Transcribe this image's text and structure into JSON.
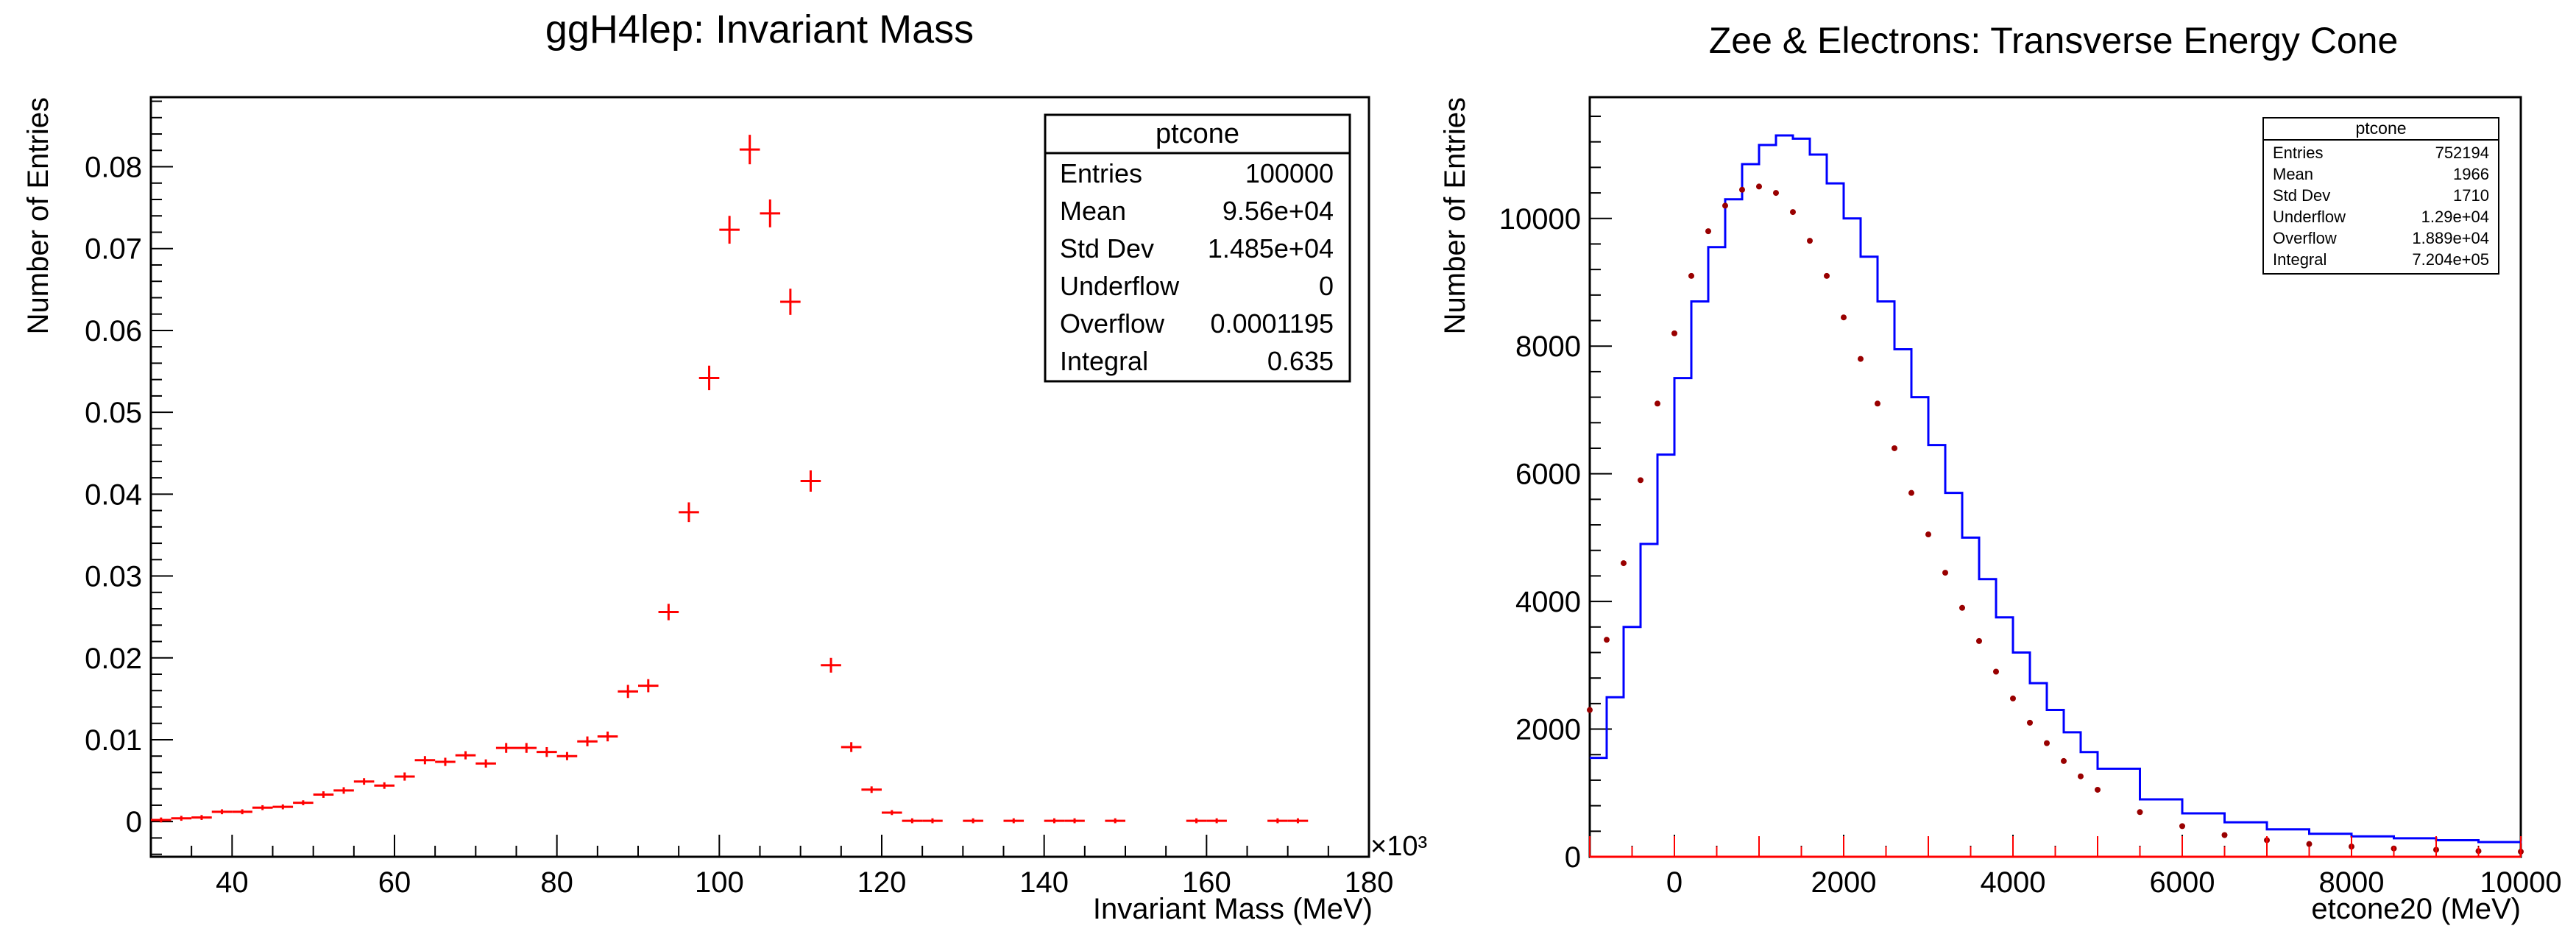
{
  "chart_data": [
    {
      "type": "scatter",
      "title": "ggH4lep: Invariant Mass",
      "xlabel": "Invariant Mass (MeV)",
      "ylabel": "Number of Entries",
      "x_exponent_label": "×10³",
      "xlim": [
        30000,
        180000
      ],
      "ylim": [
        -0.0043,
        0.0885
      ],
      "x_ticks": [
        40000,
        60000,
        80000,
        100000,
        120000,
        140000,
        160000,
        180000
      ],
      "x_tick_labels": [
        "40",
        "60",
        "80",
        "100",
        "120",
        "140",
        "160",
        "180"
      ],
      "y_ticks": [
        0,
        0.01,
        0.02,
        0.03,
        0.04,
        0.05,
        0.06,
        0.07,
        0.08
      ],
      "y_tick_labels": [
        "0",
        "0.01",
        "0.02",
        "0.03",
        "0.04",
        "0.05",
        "0.06",
        "0.07",
        "0.08"
      ],
      "grid": false,
      "series": [
        {
          "color": "#ff0000",
          "x_bin_width": 2500,
          "x": [
            31250,
            33750,
            36250,
            38750,
            41250,
            43750,
            46250,
            48750,
            51250,
            53750,
            56250,
            58750,
            61250,
            63750,
            66250,
            68750,
            71250,
            73750,
            76250,
            78750,
            81250,
            83750,
            86250,
            88750,
            91250,
            93750,
            96250,
            98750,
            101250,
            103750,
            106250,
            108750,
            111250,
            113750,
            116250,
            118750,
            121250,
            123750,
            126250,
            131250,
            136250,
            141250,
            143750,
            148750,
            158750,
            161250,
            168750,
            171250
          ],
          "values": [
            0.0002,
            0.0004,
            0.0005,
            0.0012,
            0.0012,
            0.0017,
            0.0018,
            0.0023,
            0.0033,
            0.0038,
            0.0049,
            0.0044,
            0.0055,
            0.0075,
            0.0073,
            0.0081,
            0.0071,
            0.009,
            0.009,
            0.0085,
            0.008,
            0.0098,
            0.0104,
            0.0159,
            0.0166,
            0.0256,
            0.0378,
            0.0542,
            0.0723,
            0.0821,
            0.0743,
            0.0635,
            0.0416,
            0.0191,
            0.0091,
            0.0039,
            0.0011,
            0.0001,
            0.0001,
            0.0001,
            0.0001,
            0.0001,
            0.0001,
            0.0001,
            0.0001,
            0.0001,
            0.0001,
            0.0001
          ],
          "errors": [
            0.0002,
            0.0002,
            0.0002,
            0.0003,
            0.0003,
            0.0003,
            0.0003,
            0.0003,
            0.0004,
            0.0004,
            0.0004,
            0.0004,
            0.0005,
            0.0005,
            0.0005,
            0.0005,
            0.0005,
            0.0006,
            0.0006,
            0.0006,
            0.0005,
            0.0006,
            0.0006,
            0.0008,
            0.0008,
            0.001,
            0.0012,
            0.0015,
            0.0017,
            0.0018,
            0.0017,
            0.0016,
            0.0013,
            0.0009,
            0.0006,
            0.0004,
            0.0002,
            0.0001,
            0.0001,
            0.0001,
            0.0001,
            0.0001,
            0.0001,
            0.0001,
            0.0001,
            0.0001,
            0.0001,
            0.0001
          ]
        }
      ],
      "stats_box": {
        "title": "ptcone",
        "rows": [
          {
            "label": "Entries",
            "value": "100000"
          },
          {
            "label": "Mean",
            "value": "9.56e+04"
          },
          {
            "label": "Std Dev",
            "value": "1.485e+04"
          },
          {
            "label": "Underflow",
            "value": "0"
          },
          {
            "label": "Overflow",
            "value": "0.0001195"
          },
          {
            "label": "Integral",
            "value": "0.635"
          }
        ]
      }
    },
    {
      "type": "line",
      "title": "Zee & Electrons: Transverse Energy Cone",
      "xlabel": "etcone20 (MeV)",
      "ylabel": "Number of Entries",
      "xlim": [
        -1000,
        10000
      ],
      "ylim": [
        0,
        11900
      ],
      "x_ticks": [
        0,
        2000,
        4000,
        6000,
        8000,
        10000
      ],
      "x_tick_labels": [
        "0",
        "2000",
        "4000",
        "6000",
        "8000",
        "10000"
      ],
      "y_ticks": [
        0,
        2000,
        4000,
        6000,
        8000,
        10000
      ],
      "y_tick_labels": [
        "0",
        "2000",
        "4000",
        "6000",
        "8000",
        "10000"
      ],
      "grid": false,
      "series": [
        {
          "color": "#0000ff",
          "style": "step",
          "x": [
            -1000,
            -800,
            -600,
            -400,
            -200,
            0,
            200,
            400,
            600,
            800,
            1000,
            1200,
            1400,
            1600,
            1800,
            2000,
            2200,
            2400,
            2600,
            2800,
            3000,
            3200,
            3400,
            3600,
            3800,
            4000,
            4200,
            4400,
            4600,
            4800,
            5000,
            5500,
            6000,
            6500,
            7000,
            7500,
            8000,
            8500,
            9000,
            9500,
            10000
          ],
          "values": [
            1550,
            2500,
            3600,
            4900,
            6300,
            7500,
            8700,
            9550,
            10300,
            10850,
            11150,
            11300,
            11250,
            11000,
            10550,
            10000,
            9400,
            8700,
            7950,
            7200,
            6450,
            5700,
            5000,
            4350,
            3750,
            3200,
            2720,
            2300,
            1950,
            1640,
            1380,
            900,
            680,
            540,
            430,
            360,
            320,
            290,
            260,
            230,
            210
          ]
        },
        {
          "color": "#990000",
          "style": "dots",
          "x": [
            -1000,
            -800,
            -600,
            -400,
            -200,
            0,
            200,
            400,
            600,
            800,
            1000,
            1200,
            1400,
            1600,
            1800,
            2000,
            2200,
            2400,
            2600,
            2800,
            3000,
            3200,
            3400,
            3600,
            3800,
            4000,
            4200,
            4400,
            4600,
            4800,
            5000,
            5500,
            6000,
            6500,
            7000,
            7500,
            8000,
            8500,
            9000,
            9500,
            10000
          ],
          "values": [
            2300,
            3400,
            4600,
            5900,
            7100,
            8200,
            9100,
            9800,
            10200,
            10450,
            10500,
            10400,
            10100,
            9650,
            9100,
            8450,
            7800,
            7100,
            6400,
            5700,
            5050,
            4450,
            3900,
            3380,
            2900,
            2480,
            2100,
            1780,
            1500,
            1260,
            1050,
            700,
            480,
            340,
            260,
            200,
            160,
            130,
            110,
            90,
            80
          ]
        },
        {
          "color": "#ff0000",
          "style": "baseline-errors",
          "x": [
            -1000,
            -500,
            0,
            500,
            1000,
            1500,
            2000,
            2500,
            3000,
            3500,
            4000,
            4500,
            5000,
            5500,
            6000,
            6500,
            7000,
            7500,
            8000,
            8500,
            9000,
            9500,
            10000
          ],
          "values": [
            0,
            0,
            0,
            0,
            0,
            0,
            0,
            0,
            0,
            0,
            0,
            0,
            0,
            0,
            0,
            0,
            0,
            0,
            0,
            0,
            0,
            0,
            0
          ]
        }
      ],
      "stats_box": {
        "title": "ptcone",
        "rows": [
          {
            "label": "Entries",
            "value": "752194"
          },
          {
            "label": "Mean",
            "value": "1966"
          },
          {
            "label": "Std Dev",
            "value": "1710"
          },
          {
            "label": "Underflow",
            "value": "1.29e+04"
          },
          {
            "label": "Overflow",
            "value": "1.889e+04"
          },
          {
            "label": "Integral",
            "value": "7.204e+05"
          }
        ]
      }
    }
  ]
}
